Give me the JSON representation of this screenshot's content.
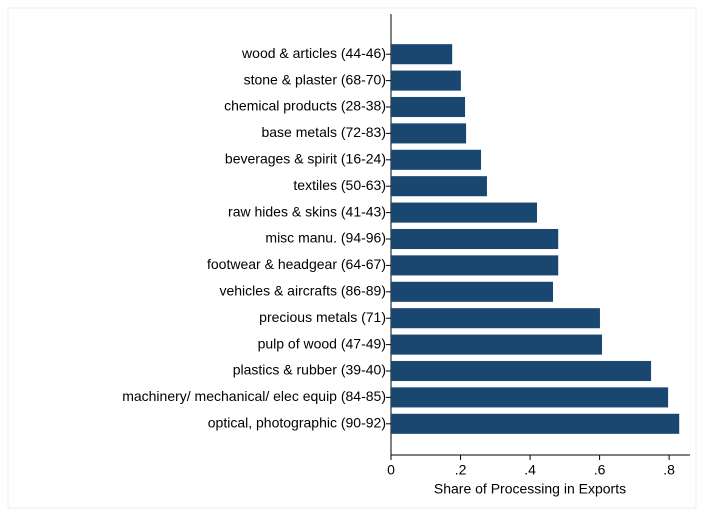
{
  "chart_data": {
    "type": "hbar",
    "xlabel": "Share of Processing in Exports",
    "categories": [
      "wood & articles (44-46)",
      "stone & plaster (68-70)",
      "chemical products (28-38)",
      "base metals (72-83)",
      "beverages & spirit (16-24)",
      "textiles (50-63)",
      "raw hides & skins (41-43)",
      "misc manu. (94-96)",
      "footwear & headgear (64-67)",
      "vehicles & aircrafts (86-89)",
      "precious metals (71)",
      "pulp of wood (47-49)",
      "plastics & rubber (39-40)",
      "machinery/ mechanical/ elec equip (84-85)",
      "optical, photographic (90-92)"
    ],
    "values": [
      0.176,
      0.201,
      0.213,
      0.216,
      0.259,
      0.276,
      0.42,
      0.481,
      0.481,
      0.466,
      0.601,
      0.607,
      0.748,
      0.797,
      0.829
    ],
    "color": "#1a476f",
    "xlim": [
      0,
      0.86
    ],
    "xticks": [
      0,
      {
        "value": 0.2,
        "label": ".2"
      },
      {
        "value": 0.4,
        "label": ".4"
      },
      {
        "value": 0.6,
        "label": ".6"
      },
      {
        "value": 0.8,
        "label": ".8"
      }
    ]
  }
}
